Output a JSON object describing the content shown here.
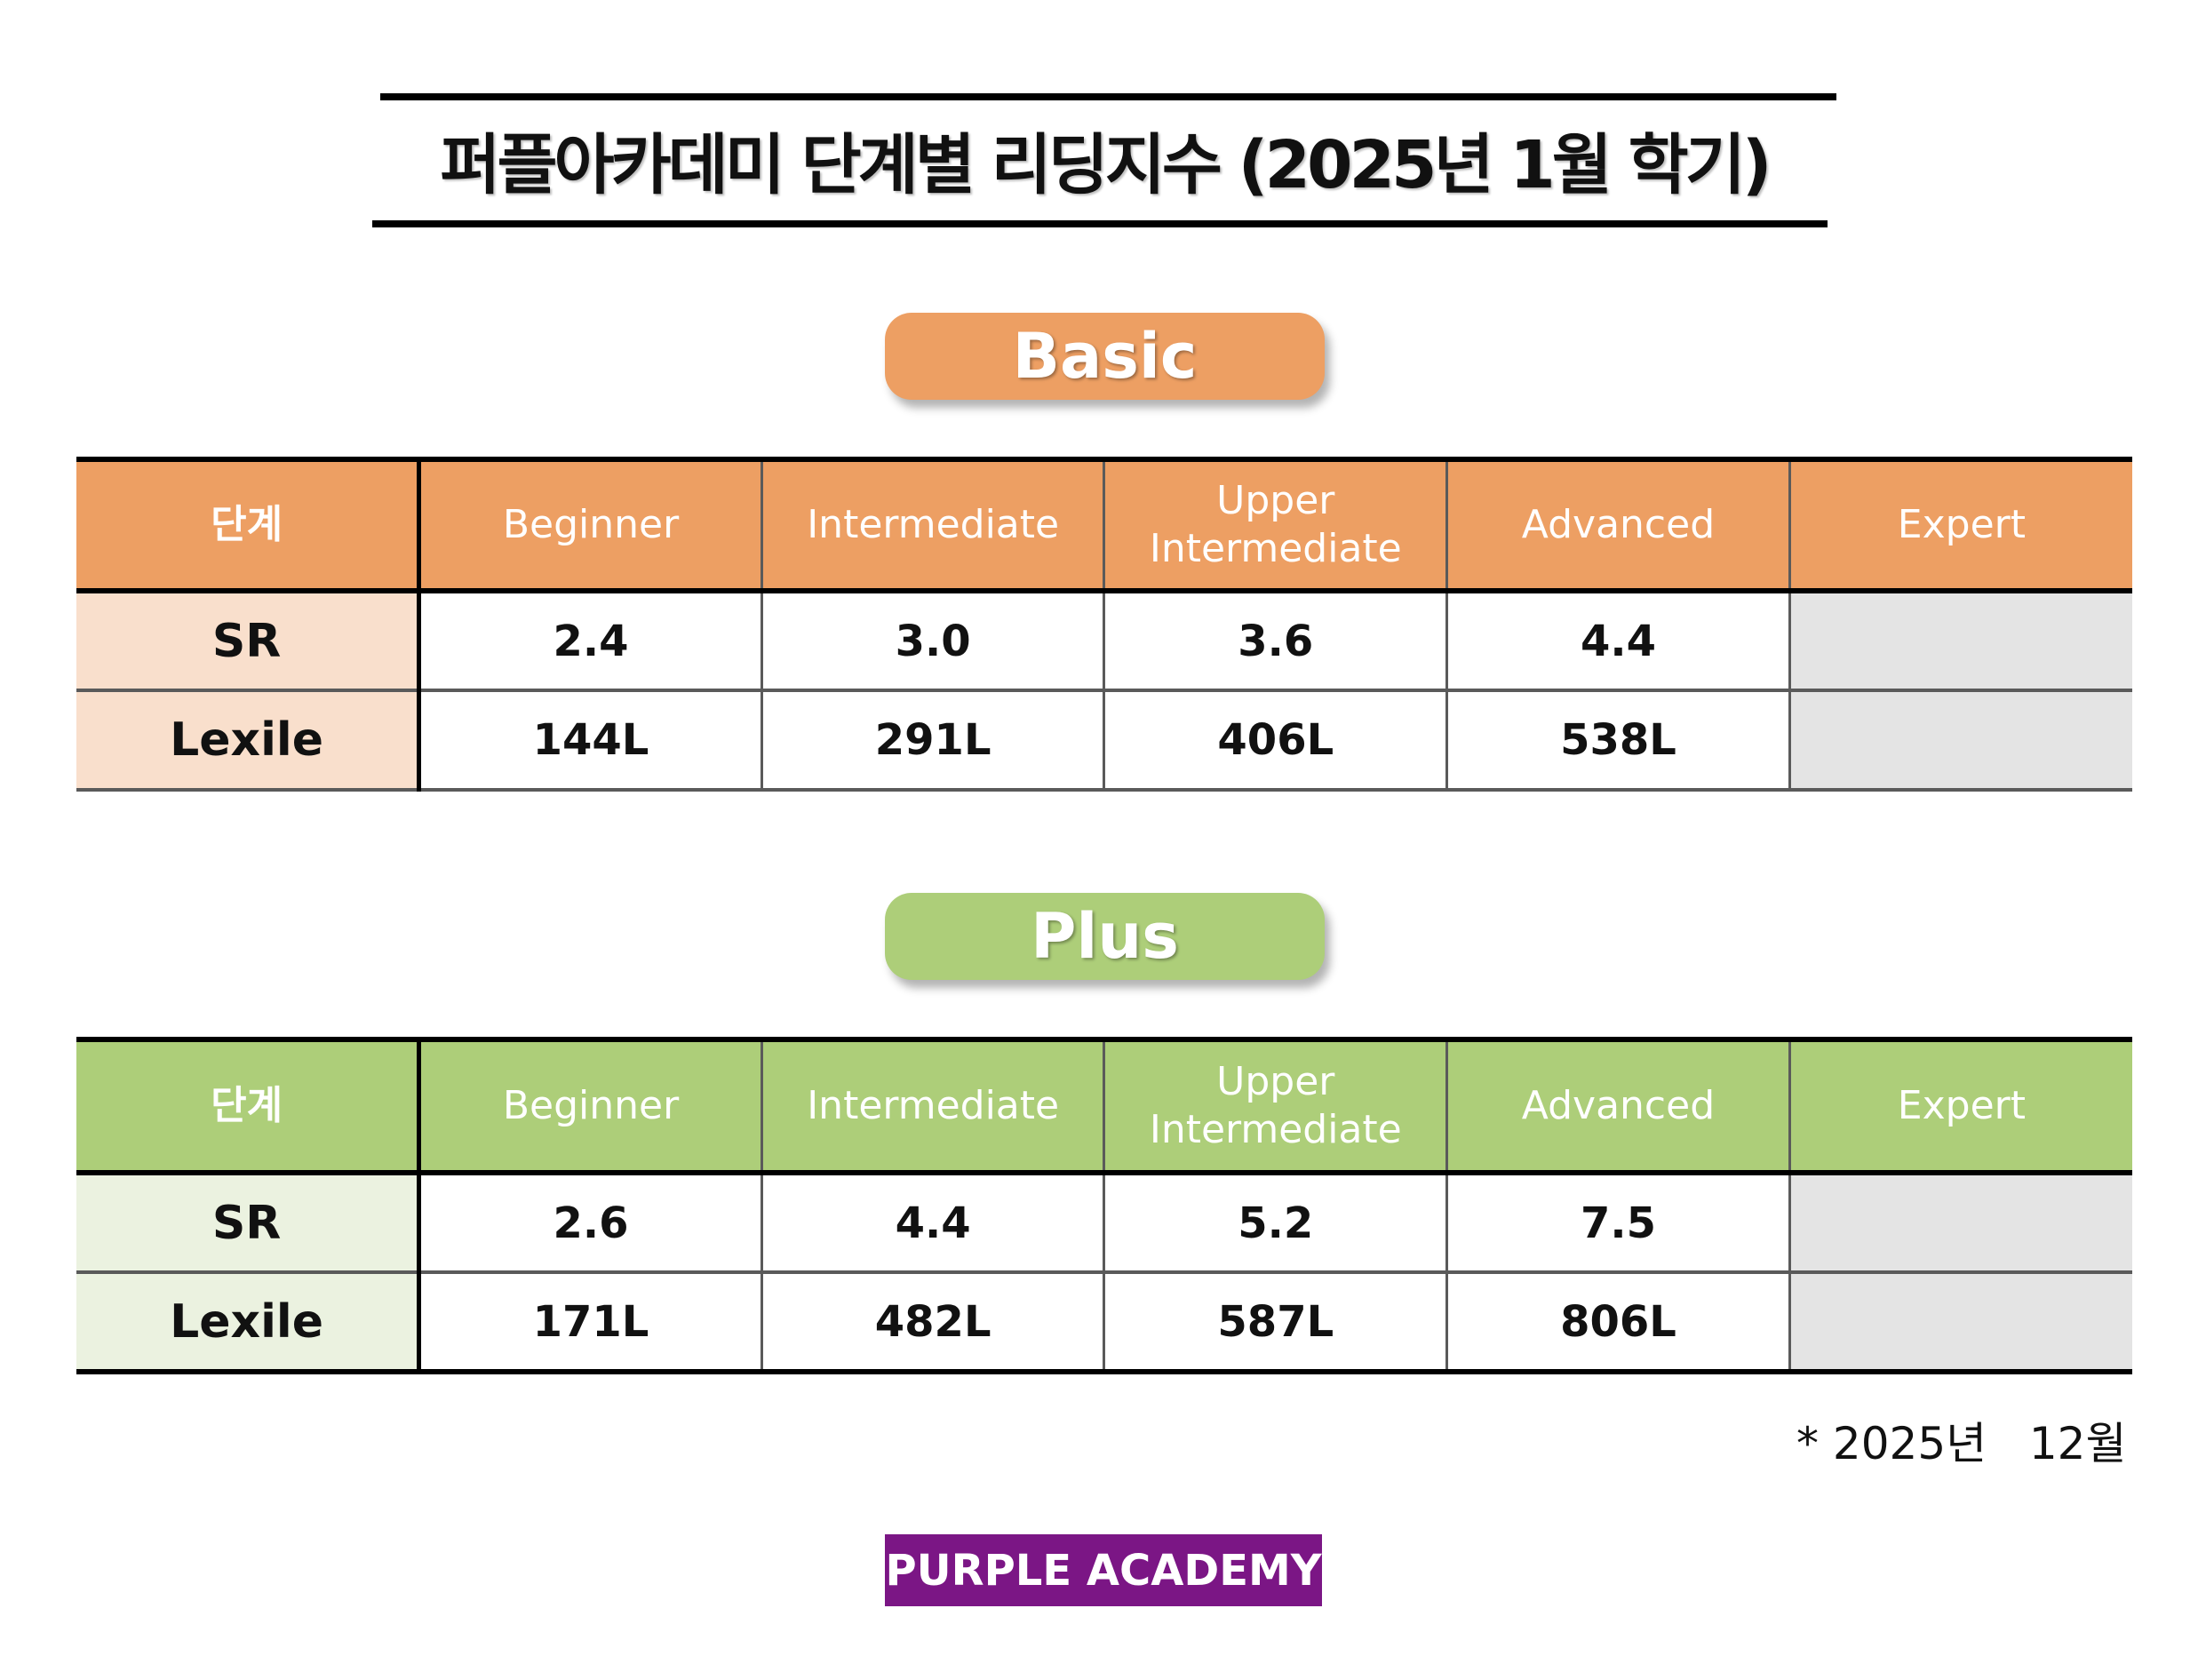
{
  "title": "퍼플아카데미 단계별 리딩지수 (2025년 1월 학기)",
  "colors": {
    "basic": "#ED9F63",
    "basic_light": "#F9DFCC",
    "plus": "#ADCE79",
    "plus_light": "#EBF2E0",
    "empty": "#E4E4E4",
    "brand": "#7B1685"
  },
  "columns": [
    "단계",
    "Beginner",
    "Intermediate",
    "Upper Intermediate",
    "Advanced",
    "Expert"
  ],
  "basic": {
    "label": "Basic",
    "rows": [
      {
        "name": "SR",
        "values": [
          "2.4",
          "3.0",
          "3.6",
          "4.4",
          ""
        ]
      },
      {
        "name": "Lexile",
        "values": [
          "144L",
          "291L",
          "406L",
          "538L",
          ""
        ]
      }
    ]
  },
  "plus": {
    "label": "Plus",
    "rows": [
      {
        "name": "SR",
        "values": [
          "2.6",
          "4.4",
          "5.2",
          "7.5",
          ""
        ]
      },
      {
        "name": "Lexile",
        "values": [
          "171L",
          "482L",
          "587L",
          "806L",
          ""
        ]
      }
    ]
  },
  "footnote": "* 2025년   12월",
  "brand": "PURPLE ACADEMY"
}
